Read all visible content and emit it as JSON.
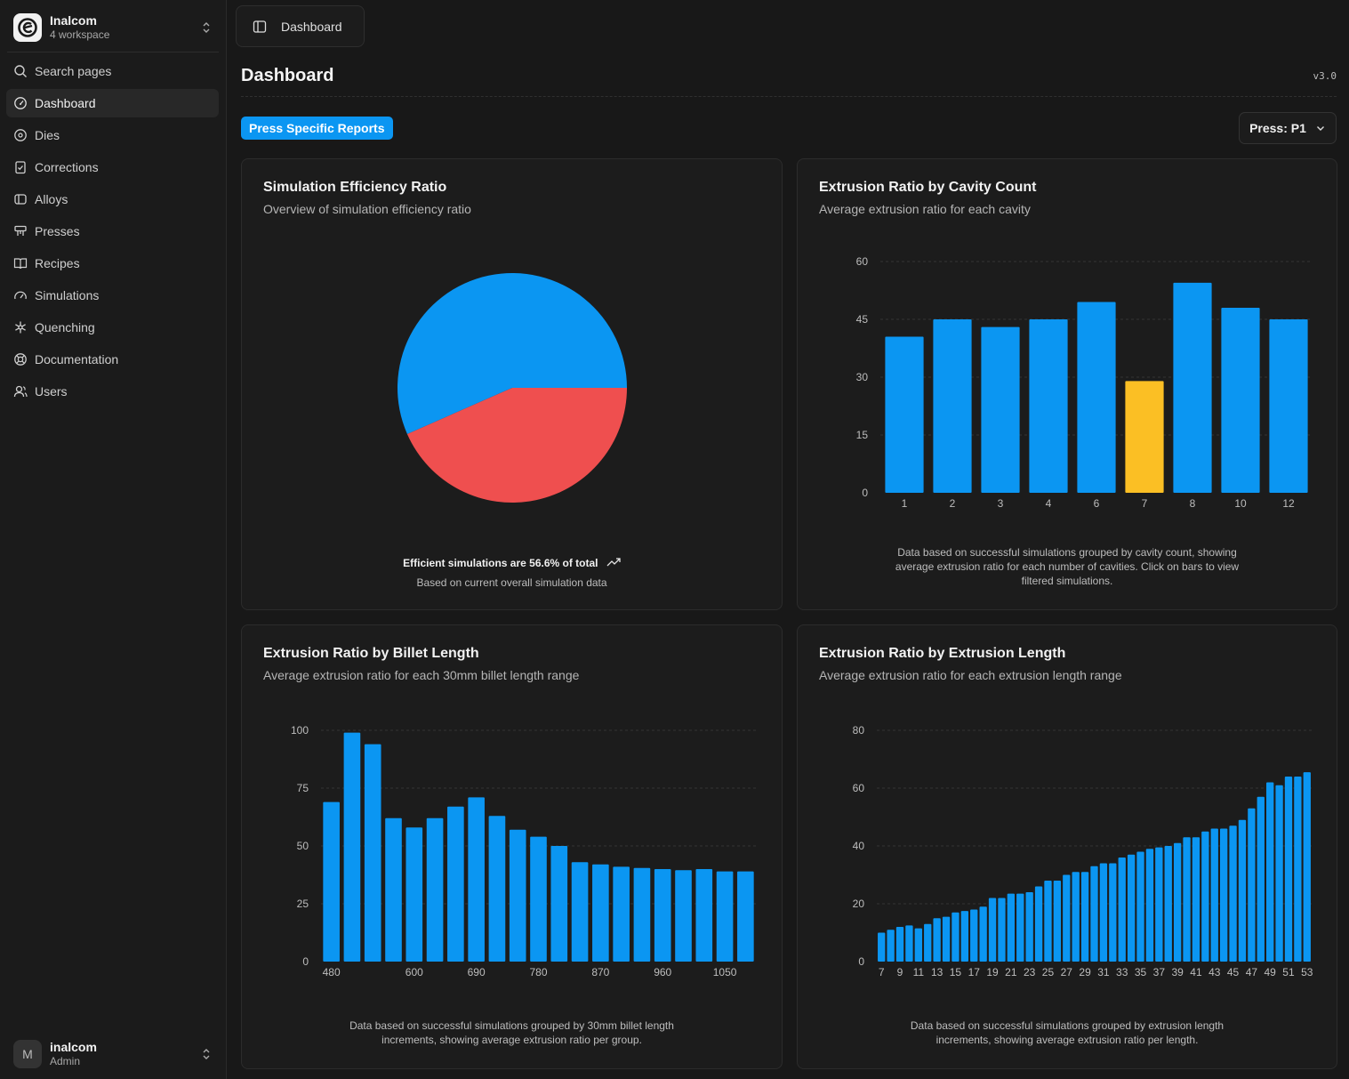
{
  "app": {
    "workspace_name": "Inalcom",
    "workspace_sub": "4 workspace",
    "user_name": "inalcom",
    "user_role": "Admin",
    "user_initial": "M"
  },
  "sidebar": {
    "items": [
      {
        "label": "Search pages",
        "icon": "search-icon"
      },
      {
        "label": "Dashboard",
        "icon": "gauge-icon",
        "active": true
      },
      {
        "label": "Dies",
        "icon": "disc-icon"
      },
      {
        "label": "Corrections",
        "icon": "clipboard-check-icon"
      },
      {
        "label": "Alloys",
        "icon": "cylinder-icon"
      },
      {
        "label": "Presses",
        "icon": "press-icon"
      },
      {
        "label": "Recipes",
        "icon": "book-icon"
      },
      {
        "label": "Simulations",
        "icon": "speedometer-icon"
      },
      {
        "label": "Quenching",
        "icon": "snowflake-icon"
      },
      {
        "label": "Documentation",
        "icon": "lifebuoy-icon"
      },
      {
        "label": "Users",
        "icon": "user-icon"
      }
    ]
  },
  "header": {
    "breadcrumb": "Dashboard",
    "title": "Dashboard",
    "version": "v3.0",
    "reports_button": "Press Specific Reports",
    "press_select": "Press: P1"
  },
  "colors": {
    "accent": "#0b96f2",
    "pie_secondary": "#ef4f4f",
    "highlight": "#fbbf24"
  },
  "cards": {
    "pie": {
      "title": "Simulation Efficiency Ratio",
      "subtitle": "Overview of simulation efficiency ratio",
      "footer_main": "Efficient simulations are 56.6% of total",
      "footer_sub": "Based on current overall simulation data"
    },
    "cavity": {
      "title": "Extrusion Ratio by Cavity Count",
      "subtitle": "Average extrusion ratio for each cavity",
      "footer": "Data based on successful simulations grouped by cavity count, showing average extrusion ratio for each number of cavities. Click on bars to view filtered simulations."
    },
    "billet": {
      "title": "Extrusion Ratio by Billet Length",
      "subtitle": "Average extrusion ratio for each 30mm billet length range",
      "footer": "Data based on successful simulations grouped by 30mm billet length increments, showing average extrusion ratio per group."
    },
    "extrusion": {
      "title": "Extrusion Ratio by Extrusion Length",
      "subtitle": "Average extrusion ratio for each extrusion length range",
      "footer": "Data based on successful simulations grouped by extrusion length increments, showing average extrusion ratio per length."
    }
  },
  "chart_data": [
    {
      "type": "pie",
      "categories": [
        "Efficient",
        "Other"
      ],
      "values": [
        56.6,
        43.4
      ],
      "colors": [
        "#0b96f2",
        "#ef4f4f"
      ]
    },
    {
      "type": "bar",
      "categories": [
        "1",
        "2",
        "3",
        "4",
        "6",
        "7",
        "8",
        "10",
        "12"
      ],
      "values": [
        40.5,
        45,
        43,
        45,
        49.5,
        29,
        54.5,
        48,
        45
      ],
      "highlight_index": 5,
      "ylim": [
        0,
        60
      ],
      "yticks": [
        0,
        15,
        30,
        45,
        60
      ],
      "grid": true
    },
    {
      "type": "bar",
      "categories": [
        "480",
        "510",
        "540",
        "570",
        "600",
        "630",
        "660",
        "690",
        "720",
        "750",
        "780",
        "810",
        "840",
        "870",
        "900",
        "930",
        "960",
        "990",
        "1020",
        "1050",
        "1080"
      ],
      "values": [
        69,
        99,
        94,
        62,
        58,
        62,
        67,
        71,
        63,
        57,
        54,
        50,
        43,
        42,
        41,
        40.5,
        40,
        39.5,
        40,
        39,
        39
      ],
      "xtick_labels": [
        "480",
        "600",
        "690",
        "780",
        "870",
        "960",
        "1050"
      ],
      "ylim": [
        0,
        100
      ],
      "yticks": [
        0,
        25,
        50,
        75,
        100
      ],
      "grid": true
    },
    {
      "type": "bar",
      "categories": [
        "7",
        "8",
        "9",
        "10",
        "11",
        "12",
        "13",
        "14",
        "15",
        "16",
        "17",
        "18",
        "19",
        "20",
        "21",
        "22",
        "23",
        "24",
        "25",
        "26",
        "27",
        "28",
        "29",
        "30",
        "31",
        "32",
        "33",
        "34",
        "35",
        "36",
        "37",
        "38",
        "39",
        "40",
        "41",
        "42",
        "43",
        "44",
        "45",
        "46",
        "47",
        "48",
        "49",
        "50",
        "51",
        "52",
        "53"
      ],
      "values": [
        10,
        11,
        12,
        12.5,
        11.5,
        13,
        15,
        15.5,
        17,
        17.5,
        18,
        19,
        22,
        22,
        23.5,
        23.5,
        24,
        26,
        28,
        28,
        30,
        31,
        31,
        33,
        34,
        34,
        36,
        37,
        38,
        39,
        39.5,
        40,
        41,
        43,
        43,
        45,
        46,
        46,
        47,
        49,
        53,
        57,
        62,
        61,
        64,
        64,
        65.5
      ],
      "xtick_labels": [
        "7",
        "9",
        "11",
        "13",
        "15",
        "17",
        "19",
        "21",
        "23",
        "25",
        "27",
        "29",
        "31",
        "33",
        "35",
        "37",
        "39",
        "41",
        "43",
        "45",
        "47",
        "49",
        "51",
        "53"
      ],
      "ylim": [
        0,
        80
      ],
      "yticks": [
        0,
        20,
        40,
        60,
        80
      ],
      "grid": true
    }
  ]
}
